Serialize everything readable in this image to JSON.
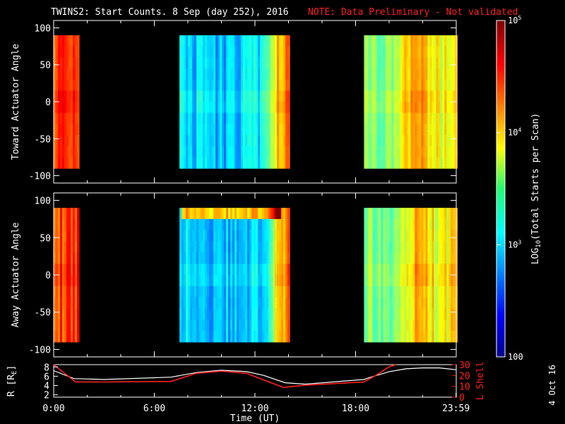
{
  "title": {
    "main": "TWINS2: Start Counts.  8 Sep (day 252), 2016",
    "note": "NOTE: Data Preliminary - Not validated",
    "note_color": "#ff2020"
  },
  "stamp": "4 Oct 16",
  "chart_data": [
    {
      "type": "heatmap",
      "ylabel": "Toward Actuator Angle",
      "ylim": [
        -110,
        110
      ],
      "yticks": [
        "100",
        "50",
        "0",
        "-50",
        "-100"
      ],
      "data_angle_range": [
        -90,
        90
      ],
      "x_hours_range": [
        0,
        24
      ],
      "data_segments_hours": [
        [
          0,
          1.5
        ],
        [
          7.5,
          14.0
        ],
        [
          18.5,
          24.0
        ]
      ],
      "level_profile_log10": [
        {
          "t": 0.0,
          "v": 4.5
        },
        {
          "t": 1.5,
          "v": 4.6
        },
        {
          "t": 7.5,
          "v": 3.0
        },
        {
          "t": 10.0,
          "v": 2.9
        },
        {
          "t": 12.5,
          "v": 3.1
        },
        {
          "t": 13.3,
          "v": 4.0
        },
        {
          "t": 14.0,
          "v": 4.4
        },
        {
          "t": 18.5,
          "v": 3.6
        },
        {
          "t": 20.0,
          "v": 3.5
        },
        {
          "t": 21.5,
          "v": 4.2
        },
        {
          "t": 23.0,
          "v": 3.8
        },
        {
          "t": 24.0,
          "v": 4.0
        }
      ]
    },
    {
      "type": "heatmap",
      "ylabel": "Away Actuator Angle",
      "ylim": [
        -110,
        110
      ],
      "yticks": [
        "100",
        "50",
        "0",
        "-50",
        "-100"
      ],
      "data_angle_range": [
        -90,
        90
      ],
      "x_hours_range": [
        0,
        24
      ],
      "data_segments_hours": [
        [
          0,
          1.5
        ],
        [
          7.5,
          14.0
        ],
        [
          18.5,
          24.0
        ]
      ],
      "bright_band_angle": [
        70,
        85
      ],
      "level_profile_log10": [
        {
          "t": 0.0,
          "v": 4.4
        },
        {
          "t": 1.5,
          "v": 4.5
        },
        {
          "t": 7.5,
          "v": 3.0
        },
        {
          "t": 10.0,
          "v": 2.9
        },
        {
          "t": 12.5,
          "v": 3.0
        },
        {
          "t": 13.3,
          "v": 4.0
        },
        {
          "t": 14.0,
          "v": 4.3
        },
        {
          "t": 18.5,
          "v": 3.5
        },
        {
          "t": 20.0,
          "v": 3.4
        },
        {
          "t": 21.5,
          "v": 4.1
        },
        {
          "t": 23.0,
          "v": 3.8
        },
        {
          "t": 24.0,
          "v": 4.0
        }
      ]
    },
    {
      "type": "line",
      "xlabel": "Time (UT)",
      "xticks": [
        "0:00",
        "6:00",
        "12:00",
        "18:00",
        "23:59"
      ],
      "ylabel_left": "R [R",
      "ylabel_left_sub": "E",
      "ylabel_left_close": "]",
      "ylabel_right": "L Shell",
      "ylim_left": [
        1.5,
        8.5
      ],
      "yticks_left": [
        "8",
        "6",
        "4",
        "2"
      ],
      "ylim_right": [
        0,
        30
      ],
      "yticks_right": [
        "30",
        "20",
        "10",
        "0"
      ],
      "series": [
        {
          "axis": "left",
          "color": "#ffffff",
          "x": [
            0,
            1.2,
            3,
            7,
            8.5,
            10,
            11.5,
            12.5,
            13.8,
            15,
            18.5,
            19,
            20,
            21,
            22,
            23,
            24
          ],
          "y": [
            7.2,
            5.5,
            5.3,
            5.8,
            6.8,
            7.3,
            7.0,
            6.2,
            4.6,
            4.3,
            5.3,
            5.9,
            7.0,
            7.6,
            7.8,
            7.8,
            7.4
          ]
        },
        {
          "axis": "right",
          "color": "#ff2020",
          "x": [
            0,
            1.3,
            3,
            7,
            8.5,
            10,
            11.5,
            12.5,
            13.7,
            15,
            18.5,
            19.2,
            20,
            20.4
          ],
          "y": [
            30,
            14,
            14,
            14.5,
            22,
            24,
            22,
            16,
            9,
            11,
            14,
            20,
            28,
            30
          ]
        }
      ]
    }
  ],
  "colorbar": {
    "label": "LOG",
    "label_sub": "10",
    "label_rest": "(Total Starts per Scan)",
    "range_log10": [
      2,
      5
    ],
    "ticks": [
      {
        "base": "10",
        "exp": "5",
        "v": 5
      },
      {
        "base": "10",
        "exp": "4",
        "v": 4
      },
      {
        "base": "10",
        "exp": "3",
        "v": 3
      },
      {
        "base": "100",
        "exp": "",
        "v": 2
      }
    ]
  }
}
